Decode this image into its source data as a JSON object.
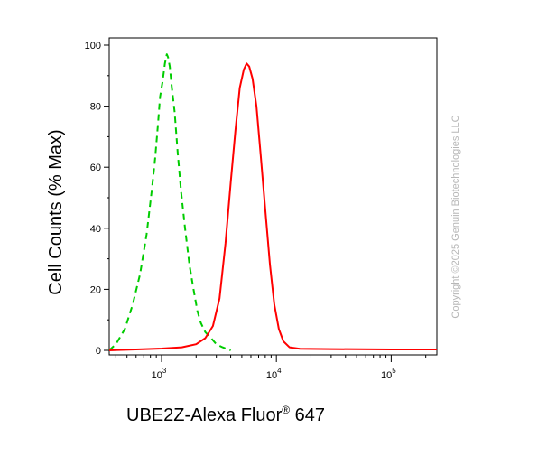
{
  "chart_data": {
    "type": "line",
    "xlabel_main": "UBE2Z-Alexa Fluor",
    "xlabel_mark": "®",
    "xlabel_suffix": " 647",
    "ylabel": "Cell Counts (% Max)",
    "x_scale": "log",
    "xlim": [
      350,
      250000
    ],
    "ylim": [
      0,
      100
    ],
    "y_ticks": [
      0,
      20,
      40,
      60,
      80,
      100
    ],
    "x_ticks": [
      {
        "value": 1000,
        "base": "10",
        "exp": "3"
      },
      {
        "value": 10000,
        "base": "10",
        "exp": "4"
      },
      {
        "value": 100000,
        "base": "10",
        "exp": "5"
      }
    ],
    "grid": false,
    "series": [
      {
        "color": "#00cc00",
        "dashed": true,
        "points": [
          [
            350,
            0
          ],
          [
            400,
            2
          ],
          [
            480,
            7
          ],
          [
            560,
            15
          ],
          [
            650,
            25
          ],
          [
            740,
            38
          ],
          [
            820,
            52
          ],
          [
            880,
            63
          ],
          [
            930,
            74
          ],
          [
            970,
            83
          ],
          [
            1020,
            88
          ],
          [
            1070,
            94
          ],
          [
            1110,
            97
          ],
          [
            1140,
            96
          ],
          [
            1180,
            93
          ],
          [
            1230,
            86
          ],
          [
            1300,
            78
          ],
          [
            1380,
            65
          ],
          [
            1480,
            52
          ],
          [
            1600,
            40
          ],
          [
            1750,
            28
          ],
          [
            1900,
            20
          ],
          [
            2050,
            13
          ],
          [
            2200,
            9
          ],
          [
            2400,
            6
          ],
          [
            2700,
            4
          ],
          [
            3000,
            2
          ],
          [
            3400,
            1
          ],
          [
            4000,
            0
          ]
        ]
      },
      {
        "color": "#ff0000",
        "dashed": false,
        "points": [
          [
            350,
            0
          ],
          [
            600,
            0.3
          ],
          [
            1000,
            0.6
          ],
          [
            1500,
            1
          ],
          [
            2000,
            2
          ],
          [
            2400,
            4
          ],
          [
            2800,
            8
          ],
          [
            3200,
            17
          ],
          [
            3600,
            35
          ],
          [
            4000,
            55
          ],
          [
            4400,
            72
          ],
          [
            4800,
            86
          ],
          [
            5200,
            92
          ],
          [
            5500,
            94
          ],
          [
            5800,
            93
          ],
          [
            6200,
            89
          ],
          [
            6700,
            80
          ],
          [
            7300,
            64
          ],
          [
            8000,
            46
          ],
          [
            8800,
            28
          ],
          [
            9600,
            15
          ],
          [
            10500,
            7
          ],
          [
            11500,
            3
          ],
          [
            13000,
            1
          ],
          [
            16000,
            0.5
          ],
          [
            30000,
            0.4
          ],
          [
            100000,
            0.3
          ],
          [
            250000,
            0.3
          ]
        ]
      }
    ]
  },
  "copyright": "Copyright ©2025 Genuin Biotechnologies LLC"
}
